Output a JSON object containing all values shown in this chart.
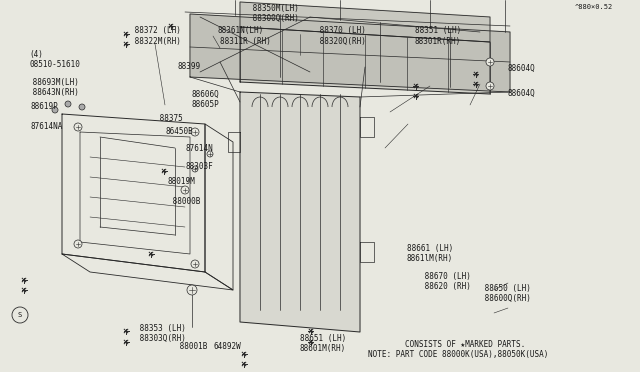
{
  "bg_color": "#e8e8e0",
  "line_color": "#2a2a2a",
  "text_color": "#1a1a1a",
  "note_line1": "NOTE: PART CODE 88000K(USA),88050K(USA)",
  "note_line2": "        CONSISTS OF ★MARKED PARTS.",
  "ref_code": "^880×0.52",
  "figsize": [
    6.4,
    3.72
  ],
  "dpi": 100
}
